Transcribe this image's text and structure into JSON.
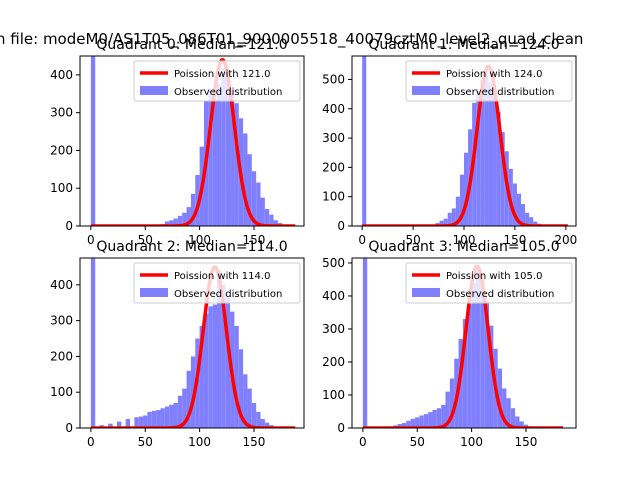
{
  "figure": {
    "suptitle": "n file: modeM0/AS1T05_086T01_9000005518_40079cztM0_level2_quad_clean"
  },
  "colors": {
    "poisson": "#ff0000",
    "observed": "#8080ff",
    "axes": "#000000"
  },
  "chart_data": [
    {
      "type": "bar",
      "title": "Quadrant 0: Median=121.0",
      "xlim": [
        -10,
        196
      ],
      "ylim": [
        0,
        450
      ],
      "xticks": [
        0,
        50,
        100,
        150
      ],
      "yticks": [
        0,
        100,
        200,
        300,
        400
      ],
      "legend": {
        "placement": "upper-right",
        "entries": [
          "Poission with 121.0",
          "Observed distribution"
        ]
      },
      "poisson": {
        "label": "Poission with 121.0",
        "mu": 121,
        "peak": 440,
        "x_range": [
          0,
          188
        ]
      },
      "observed": {
        "label": "Observed distribution",
        "bin_width": 4,
        "bins": [
          [
            0,
            450
          ],
          [
            64,
            5
          ],
          [
            68,
            12
          ],
          [
            72,
            15
          ],
          [
            76,
            20
          ],
          [
            80,
            27
          ],
          [
            84,
            35
          ],
          [
            88,
            50
          ],
          [
            92,
            85
          ],
          [
            96,
            135
          ],
          [
            100,
            210
          ],
          [
            104,
            330
          ],
          [
            108,
            360
          ],
          [
            112,
            335
          ],
          [
            116,
            375
          ],
          [
            120,
            420
          ],
          [
            124,
            395
          ],
          [
            128,
            360
          ],
          [
            132,
            325
          ],
          [
            136,
            285
          ],
          [
            140,
            245
          ],
          [
            144,
            190
          ],
          [
            148,
            145
          ],
          [
            152,
            115
          ],
          [
            156,
            75
          ],
          [
            160,
            45
          ],
          [
            164,
            30
          ],
          [
            168,
            15
          ],
          [
            172,
            8
          ]
        ]
      }
    },
    {
      "type": "bar",
      "title": "Quadrant 1: Median=124.0",
      "xlim": [
        -10,
        210
      ],
      "ylim": [
        0,
        580
      ],
      "xticks": [
        0,
        50,
        100,
        150,
        200
      ],
      "yticks": [
        0,
        100,
        200,
        300,
        400,
        500
      ],
      "legend": {
        "placement": "upper-right",
        "entries": [
          "Poission with 124.0",
          "Observed distribution"
        ]
      },
      "poisson": {
        "label": "Poission with 124.0",
        "mu": 124,
        "peak": 545,
        "x_range": [
          0,
          202
        ]
      },
      "observed": {
        "label": "Observed distribution",
        "bin_width": 4,
        "bins": [
          [
            0,
            580
          ],
          [
            72,
            10
          ],
          [
            76,
            18
          ],
          [
            80,
            25
          ],
          [
            84,
            45
          ],
          [
            88,
            60
          ],
          [
            92,
            100
          ],
          [
            96,
            175
          ],
          [
            100,
            250
          ],
          [
            104,
            330
          ],
          [
            108,
            420
          ],
          [
            112,
            460
          ],
          [
            116,
            500
          ],
          [
            120,
            520
          ],
          [
            124,
            490
          ],
          [
            128,
            450
          ],
          [
            132,
            390
          ],
          [
            136,
            320
          ],
          [
            140,
            255
          ],
          [
            144,
            195
          ],
          [
            148,
            145
          ],
          [
            152,
            110
          ],
          [
            156,
            75
          ],
          [
            160,
            45
          ],
          [
            164,
            30
          ],
          [
            168,
            15
          ],
          [
            172,
            8
          ],
          [
            176,
            5
          ]
        ]
      }
    },
    {
      "type": "bar",
      "title": "Quadrant 2: Median=114.0",
      "xlim": [
        -10,
        196
      ],
      "ylim": [
        0,
        475
      ],
      "xticks": [
        0,
        50,
        100,
        150
      ],
      "yticks": [
        0,
        100,
        200,
        300,
        400
      ],
      "legend": {
        "placement": "upper-right",
        "entries": [
          "Poission with 114.0",
          "Observed distribution"
        ]
      },
      "poisson": {
        "label": "Poission with 114.0",
        "mu": 114,
        "peak": 450,
        "x_range": [
          0,
          188
        ]
      },
      "observed": {
        "label": "Observed distribution",
        "bin_width": 4,
        "bins": [
          [
            0,
            475
          ],
          [
            8,
            8
          ],
          [
            16,
            12
          ],
          [
            24,
            18
          ],
          [
            32,
            25
          ],
          [
            40,
            30
          ],
          [
            44,
            32
          ],
          [
            48,
            35
          ],
          [
            52,
            45
          ],
          [
            56,
            48
          ],
          [
            60,
            50
          ],
          [
            64,
            55
          ],
          [
            68,
            60
          ],
          [
            72,
            65
          ],
          [
            76,
            70
          ],
          [
            80,
            90
          ],
          [
            84,
            110
          ],
          [
            88,
            160
          ],
          [
            92,
            200
          ],
          [
            96,
            250
          ],
          [
            100,
            285
          ],
          [
            104,
            320
          ],
          [
            108,
            340
          ],
          [
            112,
            345
          ],
          [
            116,
            440
          ],
          [
            120,
            400
          ],
          [
            124,
            365
          ],
          [
            128,
            325
          ],
          [
            132,
            285
          ],
          [
            136,
            220
          ],
          [
            140,
            150
          ],
          [
            144,
            110
          ],
          [
            148,
            70
          ],
          [
            152,
            45
          ],
          [
            156,
            25
          ],
          [
            160,
            15
          ],
          [
            164,
            8
          ]
        ]
      }
    },
    {
      "type": "bar",
      "title": "Quadrant 3: Median=105.0",
      "xlim": [
        -10,
        196
      ],
      "ylim": [
        0,
        515
      ],
      "xticks": [
        0,
        50,
        100,
        150
      ],
      "yticks": [
        0,
        100,
        200,
        300,
        400,
        500
      ],
      "legend": {
        "placement": "upper-right",
        "entries": [
          "Poission with 105.0",
          "Observed distribution"
        ]
      },
      "poisson": {
        "label": "Poission with 105.0",
        "mu": 105,
        "peak": 490,
        "x_range": [
          0,
          184
        ]
      },
      "observed": {
        "label": "Observed distribution",
        "bin_width": 4,
        "bins": [
          [
            0,
            515
          ],
          [
            28,
            8
          ],
          [
            32,
            12
          ],
          [
            36,
            15
          ],
          [
            40,
            22
          ],
          [
            44,
            28
          ],
          [
            48,
            32
          ],
          [
            52,
            38
          ],
          [
            56,
            42
          ],
          [
            60,
            48
          ],
          [
            64,
            55
          ],
          [
            68,
            60
          ],
          [
            72,
            70
          ],
          [
            76,
            110
          ],
          [
            80,
            150
          ],
          [
            84,
            210
          ],
          [
            88,
            270
          ],
          [
            92,
            330
          ],
          [
            96,
            375
          ],
          [
            100,
            440
          ],
          [
            104,
            480
          ],
          [
            108,
            450
          ],
          [
            112,
            385
          ],
          [
            116,
            310
          ],
          [
            120,
            240
          ],
          [
            124,
            180
          ],
          [
            128,
            120
          ],
          [
            132,
            90
          ],
          [
            136,
            60
          ],
          [
            140,
            35
          ],
          [
            144,
            20
          ],
          [
            148,
            10
          ],
          [
            152,
            5
          ]
        ]
      }
    }
  ]
}
